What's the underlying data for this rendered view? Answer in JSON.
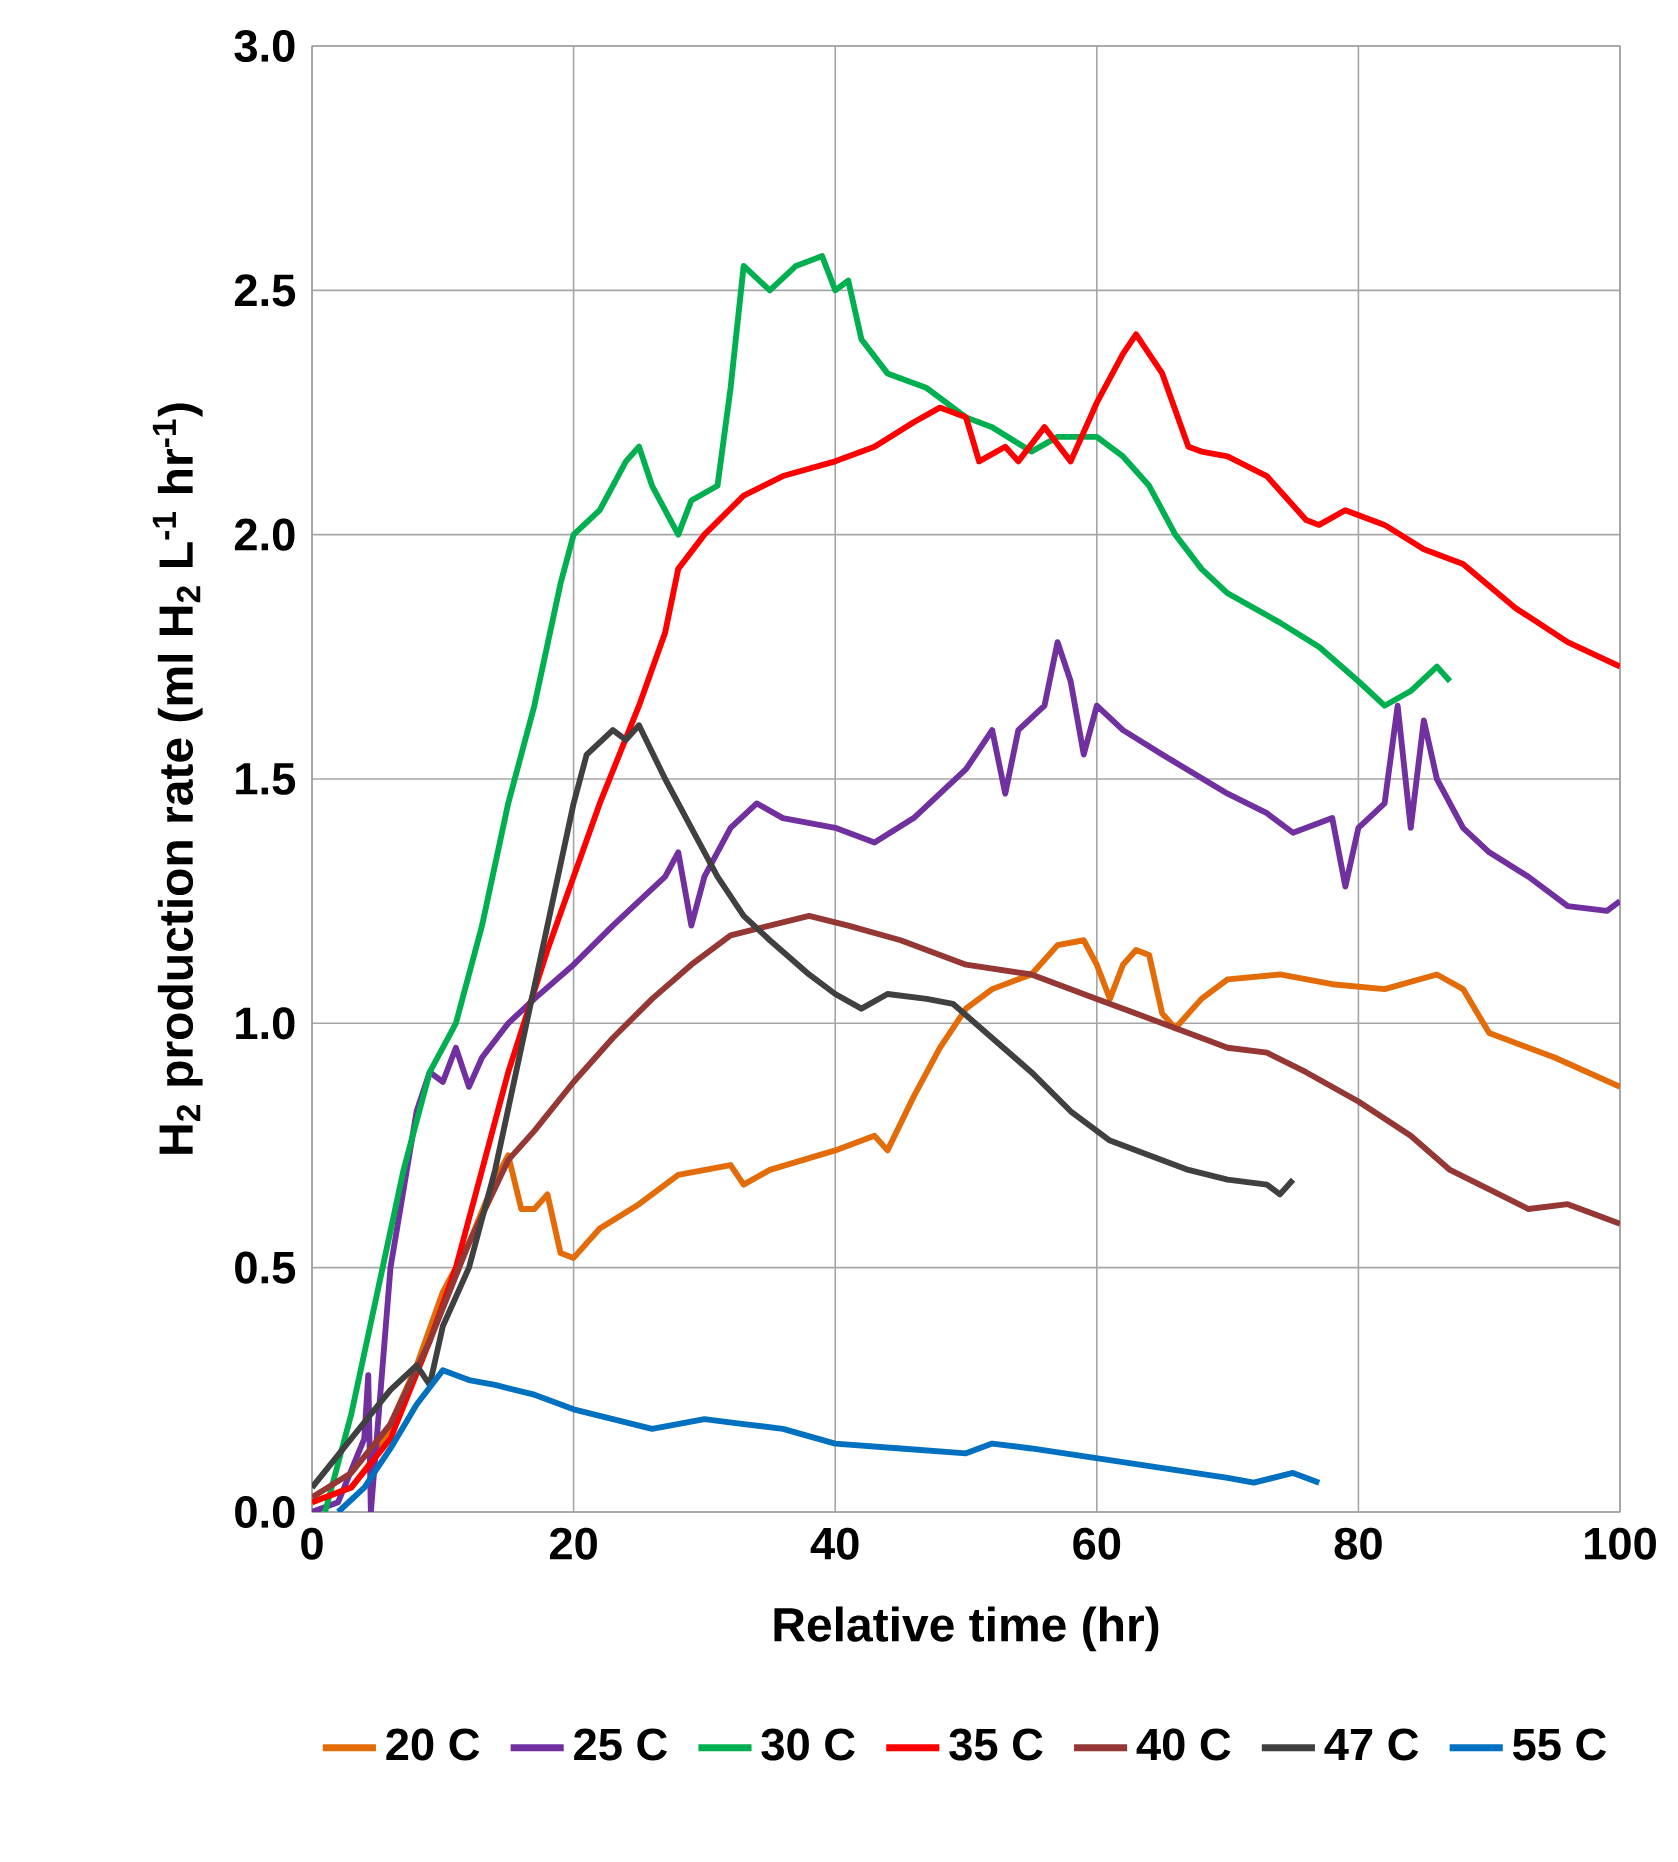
{
  "chart_data": {
    "type": "line",
    "xlabel": "Relative time (hr)",
    "ylabel": "H$_{2}$ production rate (ml H$_{2}$ L$^{-1}$ hr$^{-1}$)",
    "xlim": [
      0,
      100
    ],
    "xticks": [
      0,
      20,
      40,
      60,
      80,
      100
    ],
    "ylim": [
      0,
      3
    ],
    "yticks": [
      {
        "value": 0,
        "label": "0.0"
      },
      {
        "value": 0.5,
        "label": "0.5"
      },
      {
        "value": 1,
        "label": "1.0"
      },
      {
        "value": 1.5,
        "label": "1.5"
      },
      {
        "value": 2,
        "label": "2.0"
      },
      {
        "value": 2.5,
        "label": "2.5"
      },
      {
        "value": 3,
        "label": "3.0"
      }
    ],
    "grid": true,
    "legend": "bottom",
    "marker": "none",
    "line_style": "solid",
    "series": [
      {
        "name": "20 C",
        "color": "#e36c09",
        "x": [
          0,
          3,
          5,
          8,
          10,
          12,
          14,
          15,
          16,
          17,
          18,
          19,
          20,
          22,
          25,
          28,
          32,
          33,
          35,
          40,
          43,
          44,
          46,
          48,
          50,
          52,
          55,
          57,
          59,
          60,
          61,
          62,
          63,
          64,
          65,
          66,
          68,
          70,
          74,
          78,
          82,
          86,
          88,
          90,
          95,
          100
        ],
        "values": [
          0.02,
          0.05,
          0.12,
          0.3,
          0.45,
          0.55,
          0.68,
          0.73,
          0.62,
          0.62,
          0.65,
          0.53,
          0.52,
          0.58,
          0.63,
          0.69,
          0.71,
          0.67,
          0.7,
          0.74,
          0.77,
          0.74,
          0.85,
          0.95,
          1.03,
          1.07,
          1.1,
          1.16,
          1.17,
          1.12,
          1.05,
          1.12,
          1.15,
          1.14,
          1.02,
          0.99,
          1.05,
          1.09,
          1.1,
          1.08,
          1.07,
          1.1,
          1.07,
          0.98,
          0.93,
          0.87
        ]
      },
      {
        "name": "25 C",
        "color": "#7030a0",
        "x": [
          0,
          2,
          4,
          4.3,
          4.5,
          6,
          8,
          9,
          10,
          11,
          12,
          13,
          15,
          17,
          20,
          23,
          25,
          27,
          28,
          29,
          30,
          32,
          34,
          36,
          40,
          43,
          46,
          50,
          52,
          53,
          54,
          56,
          57,
          58,
          59,
          60,
          62,
          65,
          70,
          73,
          75,
          78,
          79,
          80,
          82,
          83,
          84,
          85,
          86,
          88,
          90,
          93,
          96,
          99,
          100
        ],
        "values": [
          0.0,
          0.02,
          0.15,
          0.28,
          0.0,
          0.5,
          0.82,
          0.9,
          0.88,
          0.95,
          0.87,
          0.93,
          1.0,
          1.05,
          1.12,
          1.2,
          1.25,
          1.3,
          1.35,
          1.2,
          1.3,
          1.4,
          1.45,
          1.42,
          1.4,
          1.37,
          1.42,
          1.52,
          1.6,
          1.47,
          1.6,
          1.65,
          1.78,
          1.7,
          1.55,
          1.65,
          1.6,
          1.55,
          1.47,
          1.43,
          1.39,
          1.42,
          1.28,
          1.4,
          1.45,
          1.65,
          1.4,
          1.62,
          1.5,
          1.4,
          1.35,
          1.3,
          1.24,
          1.23,
          1.25
        ]
      },
      {
        "name": "30 C",
        "color": "#00b050",
        "x": [
          1,
          3,
          5,
          7,
          9,
          11,
          13,
          15,
          17,
          19,
          20,
          22,
          23,
          24,
          25,
          26,
          27,
          28,
          29,
          31,
          32,
          33,
          35,
          37,
          39,
          40,
          41,
          42,
          44,
          47,
          50,
          52,
          55,
          57,
          60,
          62,
          64,
          66,
          68,
          70,
          72,
          74,
          77,
          80,
          82,
          84,
          86,
          87
        ],
        "values": [
          0.0,
          0.2,
          0.45,
          0.7,
          0.9,
          1.0,
          1.2,
          1.45,
          1.65,
          1.9,
          2.0,
          2.05,
          2.1,
          2.15,
          2.18,
          2.1,
          2.05,
          2.0,
          2.07,
          2.1,
          2.3,
          2.55,
          2.5,
          2.55,
          2.57,
          2.5,
          2.52,
          2.4,
          2.33,
          2.3,
          2.24,
          2.22,
          2.17,
          2.2,
          2.2,
          2.16,
          2.1,
          2.0,
          1.93,
          1.88,
          1.85,
          1.82,
          1.77,
          1.7,
          1.65,
          1.68,
          1.73,
          1.7
        ]
      },
      {
        "name": "35 C",
        "color": "#ff0000",
        "x": [
          0,
          3,
          6,
          9,
          11,
          13,
          15,
          18,
          22,
          25,
          27,
          28,
          30,
          33,
          36,
          40,
          43,
          46,
          48,
          50,
          51,
          53,
          54,
          56,
          58,
          60,
          62,
          63,
          65,
          67,
          68,
          70,
          73,
          76,
          77,
          79,
          82,
          85,
          88,
          92,
          96,
          100
        ],
        "values": [
          0.02,
          0.05,
          0.15,
          0.35,
          0.5,
          0.7,
          0.9,
          1.15,
          1.45,
          1.65,
          1.8,
          1.93,
          2.0,
          2.08,
          2.12,
          2.15,
          2.18,
          2.23,
          2.26,
          2.24,
          2.15,
          2.18,
          2.15,
          2.22,
          2.15,
          2.27,
          2.37,
          2.41,
          2.33,
          2.18,
          2.17,
          2.16,
          2.12,
          2.03,
          2.02,
          2.05,
          2.02,
          1.97,
          1.94,
          1.85,
          1.78,
          1.73
        ]
      },
      {
        "name": "40 C",
        "color": "#953735",
        "x": [
          0,
          3,
          6,
          9,
          12,
          15,
          17,
          20,
          23,
          26,
          29,
          32,
          35,
          38,
          41,
          45,
          50,
          55,
          60,
          63,
          67,
          70,
          73,
          76,
          80,
          84,
          87,
          90,
          93,
          96,
          98,
          100
        ],
        "values": [
          0.03,
          0.08,
          0.18,
          0.35,
          0.55,
          0.72,
          0.78,
          0.88,
          0.97,
          1.05,
          1.12,
          1.18,
          1.2,
          1.22,
          1.2,
          1.17,
          1.12,
          1.1,
          1.05,
          1.02,
          0.98,
          0.95,
          0.94,
          0.9,
          0.84,
          0.77,
          0.7,
          0.66,
          0.62,
          0.63,
          0.61,
          0.59
        ]
      },
      {
        "name": "47 C",
        "color": "#404040",
        "x": [
          0,
          3,
          6,
          8,
          9,
          10,
          12,
          14,
          16,
          18,
          20,
          21,
          23,
          24,
          25,
          27,
          29,
          31,
          33,
          35,
          38,
          40,
          42,
          44,
          47,
          49,
          52,
          55,
          58,
          61,
          64,
          67,
          70,
          73,
          74,
          75
        ],
        "values": [
          0.05,
          0.15,
          0.25,
          0.3,
          0.26,
          0.38,
          0.5,
          0.7,
          0.95,
          1.2,
          1.45,
          1.55,
          1.6,
          1.58,
          1.61,
          1.5,
          1.4,
          1.3,
          1.22,
          1.17,
          1.1,
          1.06,
          1.03,
          1.06,
          1.05,
          1.04,
          0.97,
          0.9,
          0.82,
          0.76,
          0.73,
          0.7,
          0.68,
          0.67,
          0.65,
          0.68
        ]
      },
      {
        "name": "55 C",
        "color": "#0070c0",
        "x": [
          2,
          4,
          6,
          8,
          10,
          12,
          14,
          17,
          20,
          23,
          26,
          30,
          33,
          36,
          40,
          45,
          50,
          52,
          55,
          60,
          65,
          70,
          72,
          75,
          77
        ],
        "values": [
          0.0,
          0.05,
          0.13,
          0.22,
          0.29,
          0.27,
          0.26,
          0.24,
          0.21,
          0.19,
          0.17,
          0.19,
          0.18,
          0.17,
          0.14,
          0.13,
          0.12,
          0.14,
          0.13,
          0.11,
          0.09,
          0.07,
          0.06,
          0.08,
          0.06
        ]
      }
    ]
  }
}
